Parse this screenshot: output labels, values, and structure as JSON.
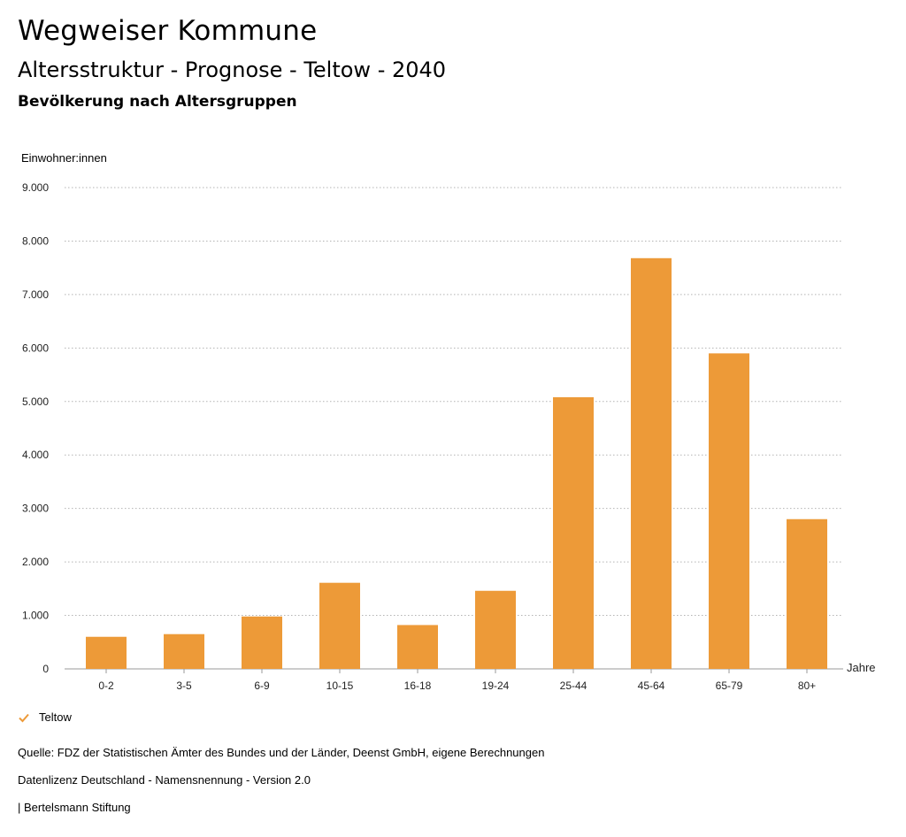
{
  "header": {
    "title": "Wegweiser Kommune",
    "subtitle": "Altersstruktur - Prognose - Teltow - 2040",
    "caption": "Bevölkerung nach Altersgruppen"
  },
  "chart_data": {
    "type": "bar",
    "title": "Bevölkerung nach Altersgruppen",
    "xlabel": "Jahre",
    "ylabel": "Einwohner:innen",
    "categories": [
      "0-2",
      "3-5",
      "6-9",
      "10-15",
      "16-18",
      "19-24",
      "25-44",
      "45-64",
      "65-79",
      "80+"
    ],
    "series": [
      {
        "name": "Teltow",
        "values": [
          600,
          650,
          980,
          1610,
          820,
          1460,
          5080,
          7680,
          5900,
          2800
        ]
      }
    ],
    "ylim": [
      0,
      9000
    ],
    "yticks": [
      0,
      1000,
      2000,
      3000,
      4000,
      5000,
      6000,
      7000,
      8000,
      9000
    ],
    "ytick_labels": [
      "0",
      "1.000",
      "2.000",
      "3.000",
      "4.000",
      "5.000",
      "6.000",
      "7.000",
      "8.000",
      "9.000"
    ],
    "grid": true,
    "legend_position": "bottom-left"
  },
  "colors": {
    "bar": "#ed9a38",
    "grid": "#b3b3b3",
    "axis": "#999999"
  },
  "legend": {
    "label": "Teltow",
    "icon": "check-icon"
  },
  "footer": {
    "source": "Quelle: FDZ der Statistischen Ämter des Bundes und der Länder, Deenst GmbH, eigene Berechnungen",
    "license": "Datenlizenz Deutschland - Namensnennung - Version 2.0",
    "credit": "| Bertelsmann Stiftung"
  }
}
